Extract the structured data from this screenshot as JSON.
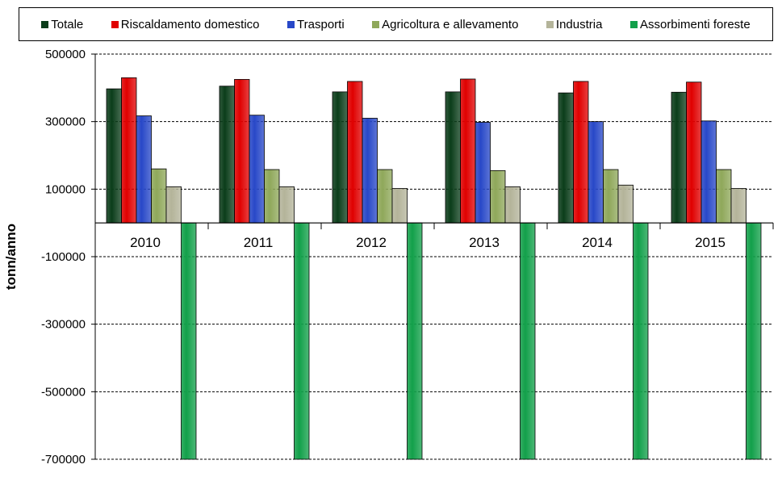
{
  "chart_data": {
    "type": "bar",
    "categories": [
      "2010",
      "2011",
      "2012",
      "2013",
      "2014",
      "2015"
    ],
    "series": [
      {
        "name": "Totale",
        "color": "#0b3d1a",
        "values": [
          397000,
          405000,
          388000,
          388000,
          385000,
          387000
        ]
      },
      {
        "name": "Riscaldamento domestico",
        "color": "#e00000",
        "values": [
          430000,
          425000,
          419000,
          426000,
          419000,
          417000
        ]
      },
      {
        "name": "Trasporti",
        "color": "#2848c8",
        "values": [
          317000,
          319000,
          310000,
          298000,
          300000,
          302000
        ]
      },
      {
        "name": "Agricoltura e allevamento",
        "color": "#8fa85a",
        "values": [
          160000,
          158000,
          158000,
          155000,
          158000,
          158000
        ]
      },
      {
        "name": "Industria",
        "color": "#b4b49a",
        "values": [
          107000,
          107000,
          102000,
          107000,
          112000,
          102000
        ]
      },
      {
        "name": "Assorbimenti foreste",
        "color": "#12a04a",
        "values": [
          -700000,
          -700000,
          -700000,
          -700000,
          -700000,
          -700000
        ]
      }
    ],
    "ylabel": "tonn/anno",
    "xlabel": "",
    "ylim": [
      -700000,
      500000
    ],
    "yticks": [
      "500000",
      "300000",
      "100000",
      "-100000",
      "-300000",
      "-500000",
      "-700000"
    ],
    "ytick_values": [
      500000,
      300000,
      100000,
      -100000,
      -300000,
      -500000,
      -700000
    ],
    "grid": true,
    "legend": "top"
  }
}
